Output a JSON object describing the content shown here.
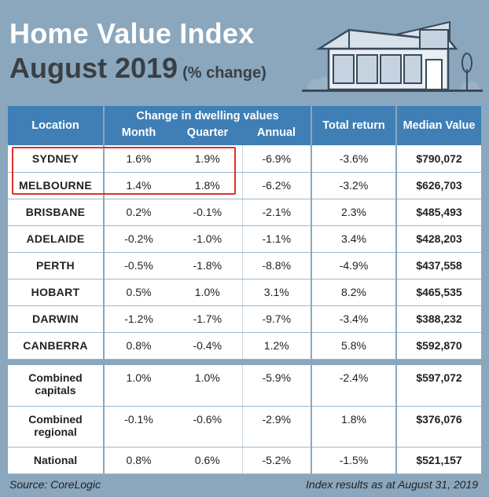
{
  "title_line1": "Home Value Index",
  "title_line2": "August 2019",
  "title_suffix": "(% change)",
  "chart_data": {
    "type": "table",
    "title": "Home Value Index August 2019 (% change)",
    "headers": {
      "location": "Location",
      "group": "Change in dwelling values",
      "month": "Month",
      "quarter": "Quarter",
      "annual": "Annual",
      "total": "Total return",
      "median": "Median Value"
    },
    "rows": [
      {
        "location": "SYDNEY",
        "month": "1.6%",
        "quarter": "1.9%",
        "annual": "-6.9%",
        "total": "-3.6%",
        "median": "$790,072"
      },
      {
        "location": "MELBOURNE",
        "month": "1.4%",
        "quarter": "1.8%",
        "annual": "-6.2%",
        "total": "-3.2%",
        "median": "$626,703"
      },
      {
        "location": "BRISBANE",
        "month": "0.2%",
        "quarter": "-0.1%",
        "annual": "-2.1%",
        "total": "2.3%",
        "median": "$485,493"
      },
      {
        "location": "ADELAIDE",
        "month": "-0.2%",
        "quarter": "-1.0%",
        "annual": "-1.1%",
        "total": "3.4%",
        "median": "$428,203"
      },
      {
        "location": "PERTH",
        "month": "-0.5%",
        "quarter": "-1.8%",
        "annual": "-8.8%",
        "total": "-4.9%",
        "median": "$437,558"
      },
      {
        "location": "HOBART",
        "month": "0.5%",
        "quarter": "1.0%",
        "annual": "3.1%",
        "total": "8.2%",
        "median": "$465,535"
      },
      {
        "location": "DARWIN",
        "month": "-1.2%",
        "quarter": "-1.7%",
        "annual": "-9.7%",
        "total": "-3.4%",
        "median": "$388,232"
      },
      {
        "location": "CANBERRA",
        "month": "0.8%",
        "quarter": "-0.4%",
        "annual": "1.2%",
        "total": "5.8%",
        "median": "$592,870"
      }
    ],
    "summary_rows": [
      {
        "location": "Combined capitals",
        "month": "1.0%",
        "quarter": "1.0%",
        "annual": "-5.9%",
        "total": "-2.4%",
        "median": "$597,072"
      },
      {
        "location": "Combined regional",
        "month": "-0.1%",
        "quarter": "-0.6%",
        "annual": "-2.9%",
        "total": "1.8%",
        "median": "$376,076"
      },
      {
        "location": "National",
        "month": "0.8%",
        "quarter": "0.6%",
        "annual": "-5.2%",
        "total": "-1.5%",
        "median": "$521,157"
      }
    ]
  },
  "footer": {
    "source": "Source: CoreLogic",
    "note": "Index results as at August 31, 2019"
  },
  "colors": {
    "background": "#8ba7bd",
    "header": "#3f7fb6",
    "highlight": "#e0312b"
  }
}
